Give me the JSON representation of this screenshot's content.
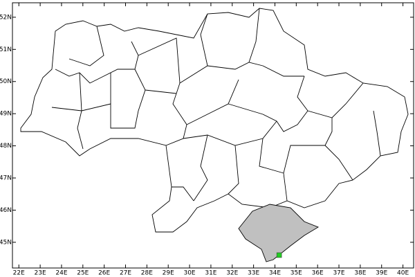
{
  "map": {
    "xlim": [
      21.7,
      40.5
    ],
    "ylim": [
      44.2,
      52.45
    ],
    "xticks": [
      {
        "value": 22,
        "label": "22E"
      },
      {
        "value": 23,
        "label": "23E"
      },
      {
        "value": 24,
        "label": "24E"
      },
      {
        "value": 25,
        "label": "25E"
      },
      {
        "value": 26,
        "label": "26E"
      },
      {
        "value": 27,
        "label": "27E"
      },
      {
        "value": 28,
        "label": "28E"
      },
      {
        "value": 29,
        "label": "29E"
      },
      {
        "value": 30,
        "label": "30E"
      },
      {
        "value": 31,
        "label": "31E"
      },
      {
        "value": 32,
        "label": "32E"
      },
      {
        "value": 33,
        "label": "33E"
      },
      {
        "value": 34,
        "label": "34E"
      },
      {
        "value": 35,
        "label": "35E"
      },
      {
        "value": 36,
        "label": "36E"
      },
      {
        "value": 37,
        "label": "37E"
      },
      {
        "value": 38,
        "label": "38E"
      },
      {
        "value": 39,
        "label": "39E"
      },
      {
        "value": 40,
        "label": "40E"
      }
    ],
    "yticks": [
      {
        "value": 45,
        "label": "45N"
      },
      {
        "value": 46,
        "label": "46N"
      },
      {
        "value": 47,
        "label": "47N"
      },
      {
        "value": 48,
        "label": "48N"
      },
      {
        "value": 49,
        "label": "49N"
      },
      {
        "value": 50,
        "label": "50N"
      },
      {
        "value": 51,
        "label": "51N"
      },
      {
        "value": 52,
        "label": "52N"
      }
    ],
    "marker": {
      "lon": 34.2,
      "lat": 44.6,
      "color": "#22cc22"
    }
  }
}
